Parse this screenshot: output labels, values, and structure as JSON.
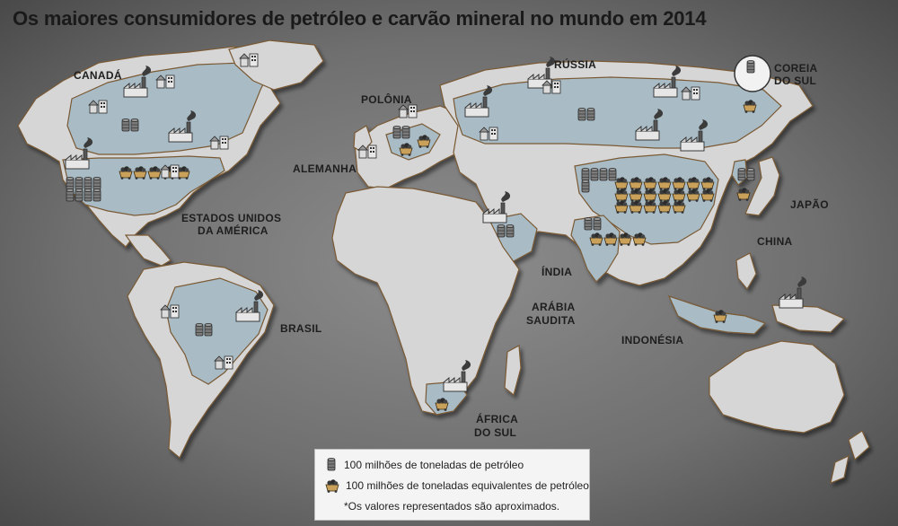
{
  "title": "Os maiores consumidores de petróleo e carvão mineral no mundo em 2014",
  "countries": {
    "canada": "CANADÁ",
    "russia": "RÚSSIA",
    "polonia": "POLÔNIA",
    "coreia_l1": "COREIA",
    "coreia_l2": "DO SUL",
    "alemanha": "ALEMANHA",
    "eua_l1": "ESTADOS UNIDOS",
    "eua_l2": "DA AMÉRICA",
    "japao": "JAPÃO",
    "china": "CHINA",
    "india": "ÍNDIA",
    "arabia_l1": "ARÁBIA",
    "arabia_l2": "SAUDITA",
    "brasil": "BRASIL",
    "indonesia": "INDONÉSIA",
    "africa_l1": "ÁFRICA",
    "africa_l2": "DO SUL"
  },
  "legend": {
    "oil": "100 milhões de toneladas de petróleo",
    "coal": "100 milhões de toneladas equivalentes de petróleo",
    "note": "*Os valores representados são aproximados."
  },
  "colors": {
    "ocean": "#7a7a7a",
    "land": "#d6d6d6",
    "highlight": "#a9bcc6",
    "land_edge": "#7a5a34",
    "coal": "#c9a15a"
  },
  "symbols": {
    "oil": [
      {
        "country": "CANADÁ",
        "count": 2
      },
      {
        "country": "ESTADOS UNIDOS DA AMÉRICA",
        "count": 8
      },
      {
        "country": "BRASIL",
        "count": 2
      },
      {
        "country": "RÚSSIA",
        "count": 2
      },
      {
        "country": "ALEMANHA",
        "count": 2
      },
      {
        "country": "ARÁBIA SAUDITA",
        "count": 2
      },
      {
        "country": "CHINA",
        "count": 5
      },
      {
        "country": "ÍNDIA",
        "count": 2
      },
      {
        "country": "JAPÃO",
        "count": 2
      },
      {
        "country": "COREIA DO SUL",
        "count": 1
      }
    ],
    "coal": [
      {
        "country": "ESTADOS UNIDOS DA AMÉRICA",
        "count": 5
      },
      {
        "country": "POLÔNIA",
        "count": 1
      },
      {
        "country": "ALEMANHA",
        "count": 1
      },
      {
        "country": "CHINA",
        "count": 19
      },
      {
        "country": "ÍNDIA",
        "count": 4
      },
      {
        "country": "JAPÃO",
        "count": 1
      },
      {
        "country": "INDONÉSIA",
        "count": 1
      },
      {
        "country": "ÁFRICA DO SUL",
        "count": 1
      },
      {
        "country": "RÚSSIA",
        "count": 1
      }
    ]
  }
}
